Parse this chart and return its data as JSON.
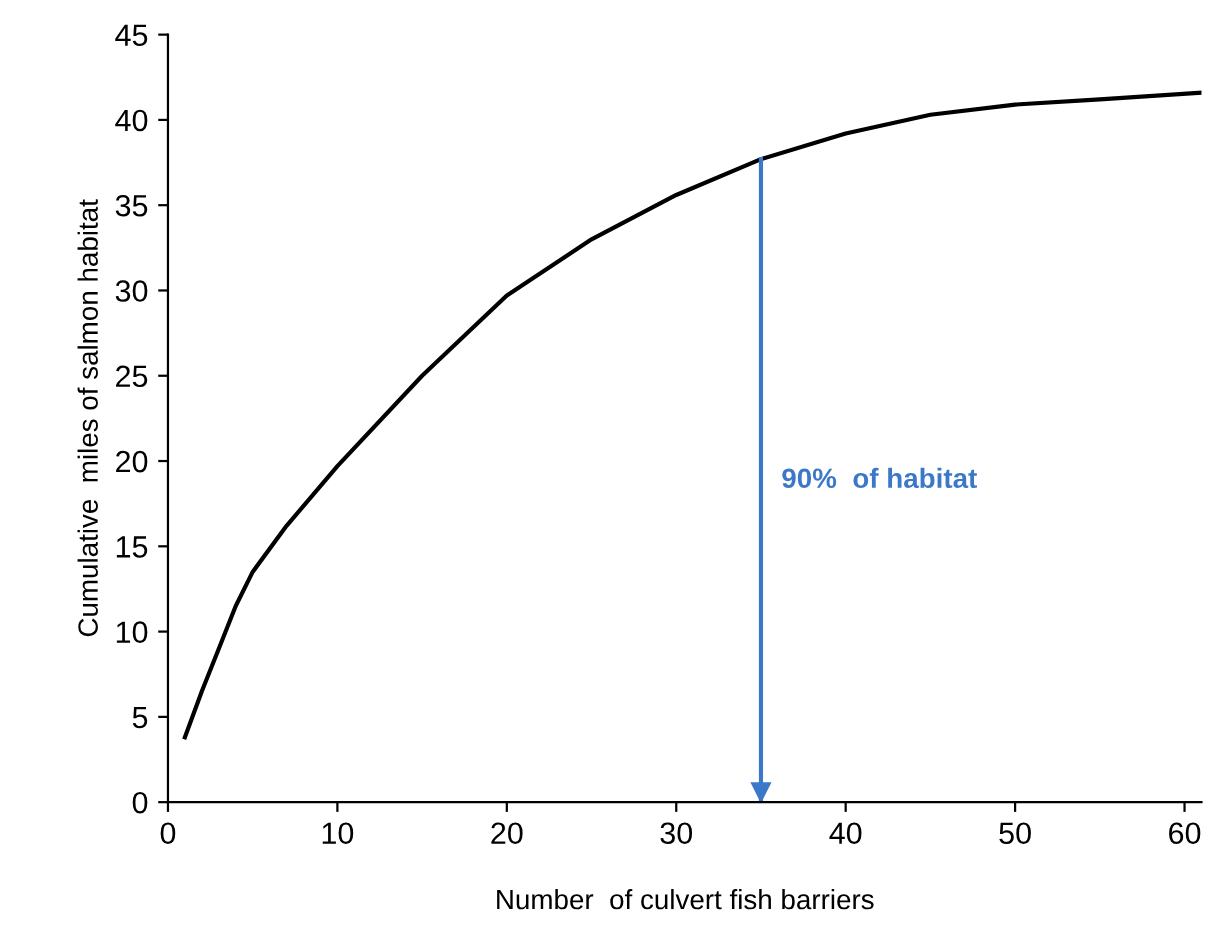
{
  "chart_data": {
    "type": "line",
    "xlabel": "Number  of culvert fish barriers",
    "ylabel": "Cumulative  miles of salmon habitat",
    "x": [
      1,
      2,
      3,
      4,
      5,
      7,
      10,
      15,
      20,
      25,
      30,
      35,
      40,
      45,
      50,
      55,
      61
    ],
    "series": [
      {
        "color": "#000000",
        "values": [
          3.8,
          6.5,
          9,
          11.5,
          13.5,
          16.2,
          19.7,
          25,
          29.7,
          33,
          35.6,
          37.7,
          39.2,
          40.3,
          40.9,
          41.2,
          41.6
        ]
      }
    ],
    "xlim": [
      0,
      61
    ],
    "xticks": [
      0,
      10,
      20,
      30,
      40,
      50,
      60
    ],
    "ylim": [
      0,
      45
    ],
    "yticks": [
      0,
      5,
      10,
      15,
      20,
      25,
      30,
      35,
      40,
      45
    ],
    "grid": false,
    "legend": false,
    "marker": "none",
    "line_style": "solid",
    "ref_lines": [
      {
        "axis": "x",
        "value": 35,
        "label": "90%  of habitat",
        "color": "#3b78c9"
      }
    ]
  }
}
